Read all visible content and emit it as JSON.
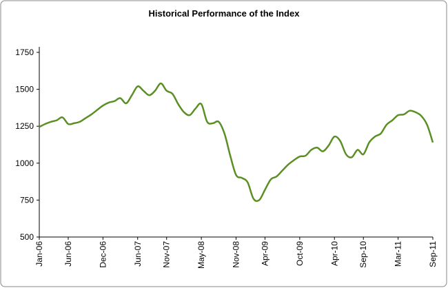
{
  "chart_data": {
    "type": "line",
    "title": "Historical Performance of the Index",
    "categories": [
      "Jan-06",
      null,
      null,
      null,
      null,
      "Jun-06",
      null,
      null,
      null,
      null,
      null,
      "Dec-06",
      null,
      null,
      null,
      null,
      null,
      "Jun-07",
      null,
      null,
      null,
      null,
      "Nov-07",
      null,
      null,
      null,
      null,
      null,
      "May-08",
      null,
      null,
      null,
      null,
      null,
      "Nov-08",
      null,
      null,
      null,
      null,
      "Apr-09",
      null,
      null,
      null,
      null,
      null,
      "Oct-09",
      null,
      null,
      null,
      null,
      null,
      "Apr-10",
      null,
      null,
      null,
      null,
      "Sep-10",
      null,
      null,
      null,
      null,
      null,
      "Mar-11",
      null,
      null,
      null,
      null,
      null,
      "Sep-11"
    ],
    "values": [
      1245,
      1265,
      1280,
      1290,
      1310,
      1265,
      1270,
      1280,
      1305,
      1330,
      1360,
      1390,
      1410,
      1420,
      1440,
      1405,
      1460,
      1520,
      1490,
      1460,
      1490,
      1540,
      1490,
      1470,
      1400,
      1345,
      1325,
      1370,
      1400,
      1280,
      1270,
      1280,
      1200,
      1050,
      920,
      900,
      870,
      760,
      750,
      820,
      890,
      910,
      950,
      990,
      1020,
      1045,
      1050,
      1090,
      1105,
      1080,
      1120,
      1180,
      1150,
      1060,
      1040,
      1090,
      1060,
      1140,
      1180,
      1200,
      1260,
      1290,
      1325,
      1330,
      1355,
      1345,
      1320,
      1260,
      1140
    ],
    "color": "#5a8f23",
    "ylim": [
      500,
      1750
    ],
    "yticks": [
      500,
      750,
      1000,
      1250,
      1500,
      1750
    ]
  }
}
